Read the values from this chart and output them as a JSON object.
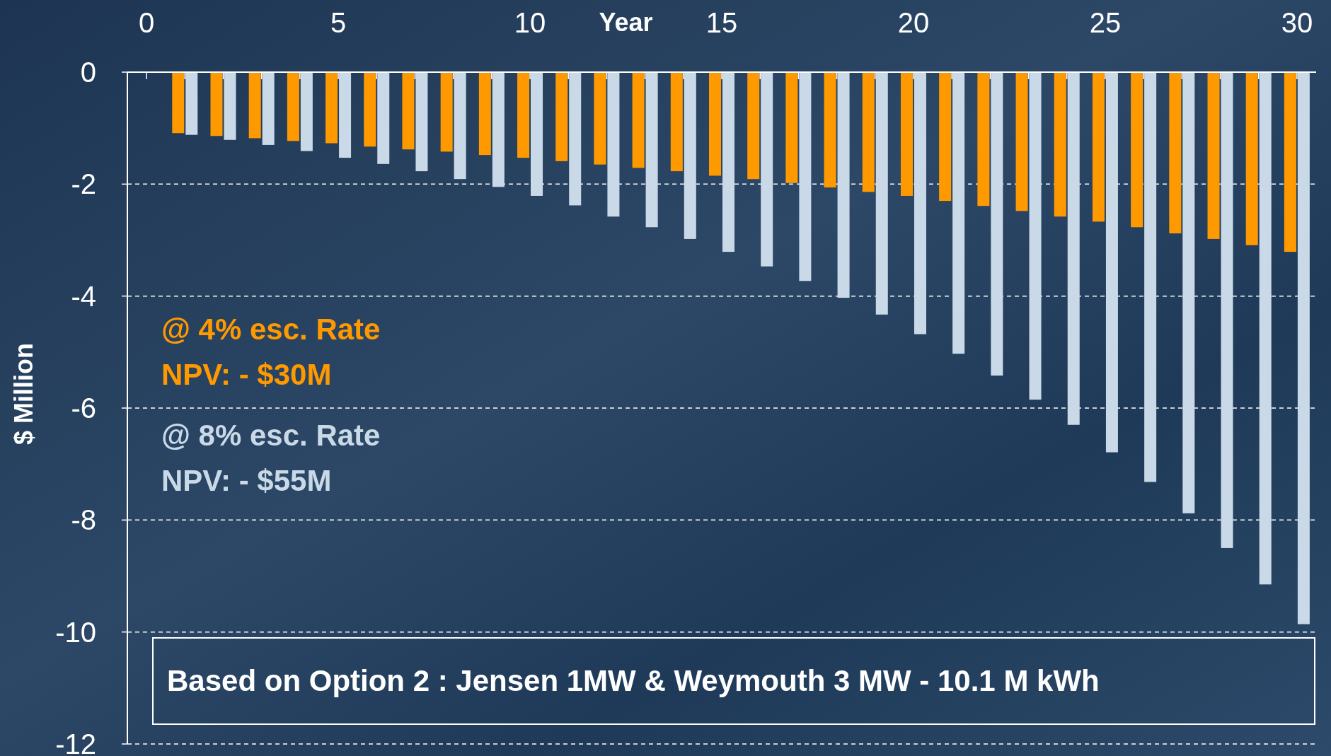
{
  "chart_data": {
    "type": "bar",
    "xlabel": "Year",
    "ylabel": "$ Million",
    "x": [
      1,
      2,
      3,
      4,
      5,
      6,
      7,
      8,
      9,
      10,
      11,
      12,
      13,
      14,
      15,
      16,
      17,
      18,
      19,
      20,
      21,
      22,
      23,
      24,
      25,
      26,
      27,
      28,
      29,
      30
    ],
    "series": [
      {
        "name": "@ 4% esc. Rate",
        "color": "#ff9900",
        "values": [
          -1.09,
          -1.14,
          -1.18,
          -1.23,
          -1.27,
          -1.33,
          -1.38,
          -1.42,
          -1.48,
          -1.53,
          -1.59,
          -1.65,
          -1.71,
          -1.77,
          -1.85,
          -1.91,
          -1.98,
          -2.06,
          -2.14,
          -2.21,
          -2.3,
          -2.39,
          -2.48,
          -2.58,
          -2.67,
          -2.77,
          -2.88,
          -2.98,
          -3.09,
          -3.21
        ]
      },
      {
        "name": "@ 8% esc. Rate",
        "color": "#c9d9e8",
        "values": [
          -1.12,
          -1.21,
          -1.3,
          -1.41,
          -1.53,
          -1.64,
          -1.77,
          -1.91,
          -2.05,
          -2.21,
          -2.38,
          -2.58,
          -2.77,
          -2.98,
          -3.21,
          -3.47,
          -3.73,
          -4.03,
          -4.33,
          -4.68,
          -5.03,
          -5.42,
          -5.85,
          -6.3,
          -6.79,
          -7.32,
          -7.88,
          -8.5,
          -9.15,
          -9.86
        ]
      }
    ],
    "xlim": [
      -0.5,
      30.5
    ],
    "xticks": [
      0,
      {
        "value": 1,
        "label": null
      },
      {
        "value": 2,
        "label": null
      },
      {
        "value": 3,
        "label": null
      },
      {
        "value": 4,
        "label": null
      },
      5,
      {
        "value": 6,
        "label": null
      },
      {
        "value": 7,
        "label": null
      },
      {
        "value": 8,
        "label": null
      },
      {
        "value": 9,
        "label": null
      },
      10,
      {
        "value": 11,
        "label": null
      },
      {
        "value": 12,
        "label": null
      },
      {
        "value": 13,
        "label": null
      },
      {
        "value": 14,
        "label": null
      },
      15,
      {
        "value": 16,
        "label": null
      },
      {
        "value": 17,
        "label": null
      },
      {
        "value": 18,
        "label": null
      },
      {
        "value": 19,
        "label": null
      },
      20,
      {
        "value": 21,
        "label": null
      },
      {
        "value": 22,
        "label": null
      },
      {
        "value": 23,
        "label": null
      },
      {
        "value": 24,
        "label": null
      },
      25,
      {
        "value": 26,
        "label": null
      },
      {
        "value": 27,
        "label": null
      },
      {
        "value": 28,
        "label": null
      },
      {
        "value": 29,
        "label": null
      },
      30
    ],
    "ylim": [
      -12,
      0
    ],
    "yticks": [
      0,
      -2,
      -4,
      -6,
      -8,
      -10,
      -12
    ],
    "grid": "y",
    "legend": "left",
    "annotations": [
      "NPV: - $30M",
      "NPV: - $55M",
      "Based on Option 2 : Jensen 1MW & Weymouth 3 MW - 10.1 M kWh"
    ]
  }
}
